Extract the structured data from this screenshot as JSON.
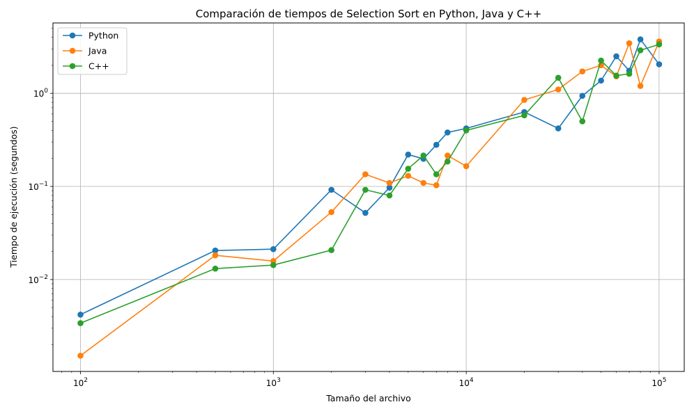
{
  "chart_data": {
    "type": "line",
    "title": "Comparación de tiempos de Selection Sort en Python, Java y C++",
    "xlabel": "Tamaño del archivo",
    "ylabel": "Tiempo de ejecución (segundos)",
    "xscale": "log",
    "yscale": "log",
    "xlim": [
      72,
      135000
    ],
    "ylim": [
      0.00103,
      5.7
    ],
    "grid": true,
    "legend_position": "top-left",
    "x_ticks": [
      {
        "value": 100,
        "base": "10",
        "exp": "2"
      },
      {
        "value": 1000,
        "base": "10",
        "exp": "3"
      },
      {
        "value": 10000,
        "base": "10",
        "exp": "4"
      },
      {
        "value": 100000,
        "base": "10",
        "exp": "5"
      }
    ],
    "y_ticks": [
      {
        "value": 0.01,
        "base": "10",
        "exp": "−2"
      },
      {
        "value": 0.1,
        "base": "10",
        "exp": "−1"
      },
      {
        "value": 1,
        "base": "10",
        "exp": "0"
      }
    ],
    "x": [
      100,
      500,
      1000,
      2000,
      3000,
      4000,
      5000,
      6000,
      7000,
      8000,
      10000,
      20000,
      30000,
      40000,
      50000,
      60000,
      70000,
      80000,
      100000
    ],
    "series": [
      {
        "name": "Python",
        "color": "#1f77b4",
        "values": [
          0.0042,
          0.0205,
          0.0212,
          0.092,
          0.052,
          0.097,
          0.22,
          0.198,
          0.28,
          0.38,
          0.42,
          0.63,
          0.42,
          0.94,
          1.37,
          2.5,
          1.75,
          3.8,
          2.05
        ]
      },
      {
        "name": "Java",
        "color": "#ff7f0e",
        "values": [
          0.00152,
          0.0182,
          0.0158,
          0.053,
          0.135,
          0.109,
          0.13,
          0.109,
          0.103,
          0.215,
          0.165,
          0.85,
          1.1,
          1.72,
          2.0,
          1.52,
          3.45,
          1.2,
          3.6
        ]
      },
      {
        "name": "C++",
        "color": "#2ca02c",
        "values": [
          0.0034,
          0.0131,
          0.0143,
          0.0207,
          0.092,
          0.08,
          0.155,
          0.215,
          0.135,
          0.185,
          0.4,
          0.58,
          1.47,
          0.5,
          2.25,
          1.55,
          1.62,
          2.9,
          3.35
        ]
      }
    ]
  }
}
